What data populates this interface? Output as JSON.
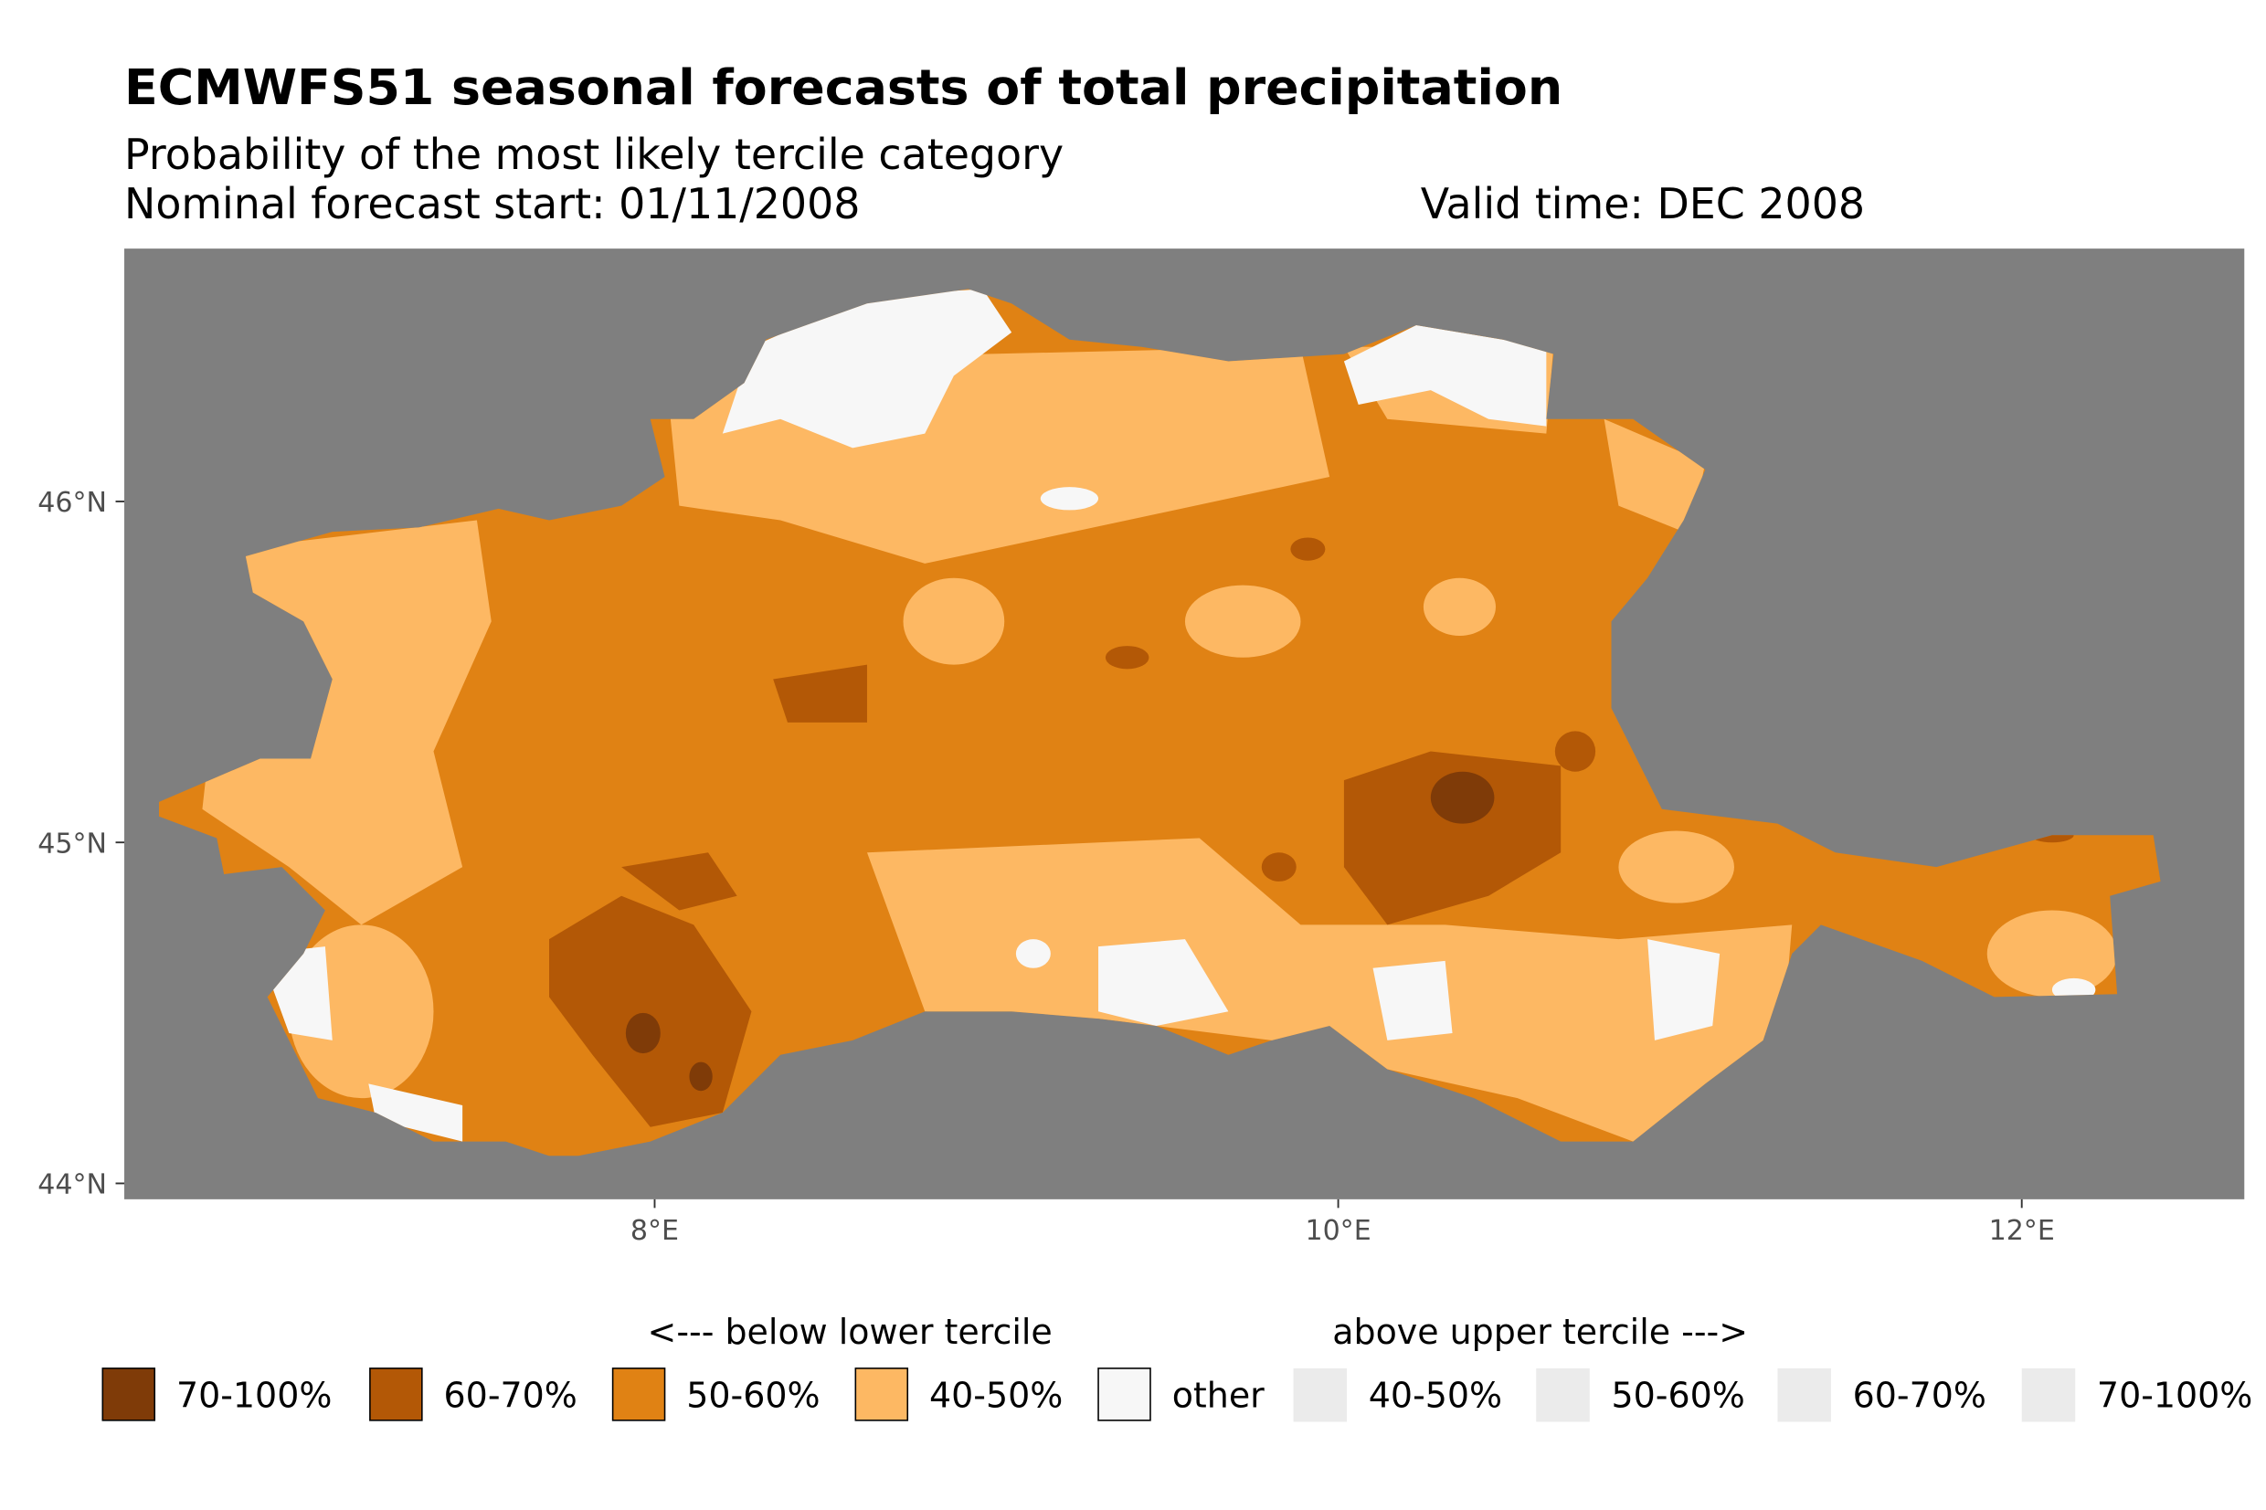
{
  "chart_data": {
    "type": "heatmap",
    "title": "ECMWFS51 seasonal forecasts of total precipitation",
    "subtitle": "Probability of the most likely tercile category",
    "forecast_start": "Nominal forecast start: 01/11/2008",
    "valid_time": "Valid time: DEC 2008",
    "xlabel": "",
    "ylabel": "",
    "xlim": [
      6.45,
      12.65
    ],
    "ylim": [
      43.95,
      46.74
    ],
    "x_ticks": [
      {
        "value": 8,
        "label": "8°E"
      },
      {
        "value": 10,
        "label": "10°E"
      },
      {
        "value": 12,
        "label": "12°E"
      }
    ],
    "y_ticks": [
      {
        "value": 46,
        "label": "46°N"
      },
      {
        "value": 45,
        "label": "45°N"
      },
      {
        "value": 44,
        "label": "44°N"
      }
    ],
    "background_color": "#7f7f7f",
    "legend": {
      "placement": "bottom",
      "below_title": "<--- below lower tercile",
      "above_title": "above upper tercile --->",
      "below_items": [
        {
          "label": "70-100%",
          "color": "#7f3b08"
        },
        {
          "label": "60-70%",
          "color": "#b35806"
        },
        {
          "label": "50-60%",
          "color": "#e08214"
        },
        {
          "label": "40-50%",
          "color": "#fdb863"
        },
        {
          "label": "other",
          "color": "#f7f7f7"
        }
      ],
      "above_items": [
        {
          "label": "40-50%",
          "color": "#ebebeb"
        },
        {
          "label": "50-60%",
          "color": "#ebebeb"
        },
        {
          "label": "60-70%",
          "color": "#ebebeb"
        },
        {
          "label": "70-100%",
          "color": "#ebebeb"
        }
      ]
    },
    "dominant_category": "50-60% below lower tercile"
  }
}
